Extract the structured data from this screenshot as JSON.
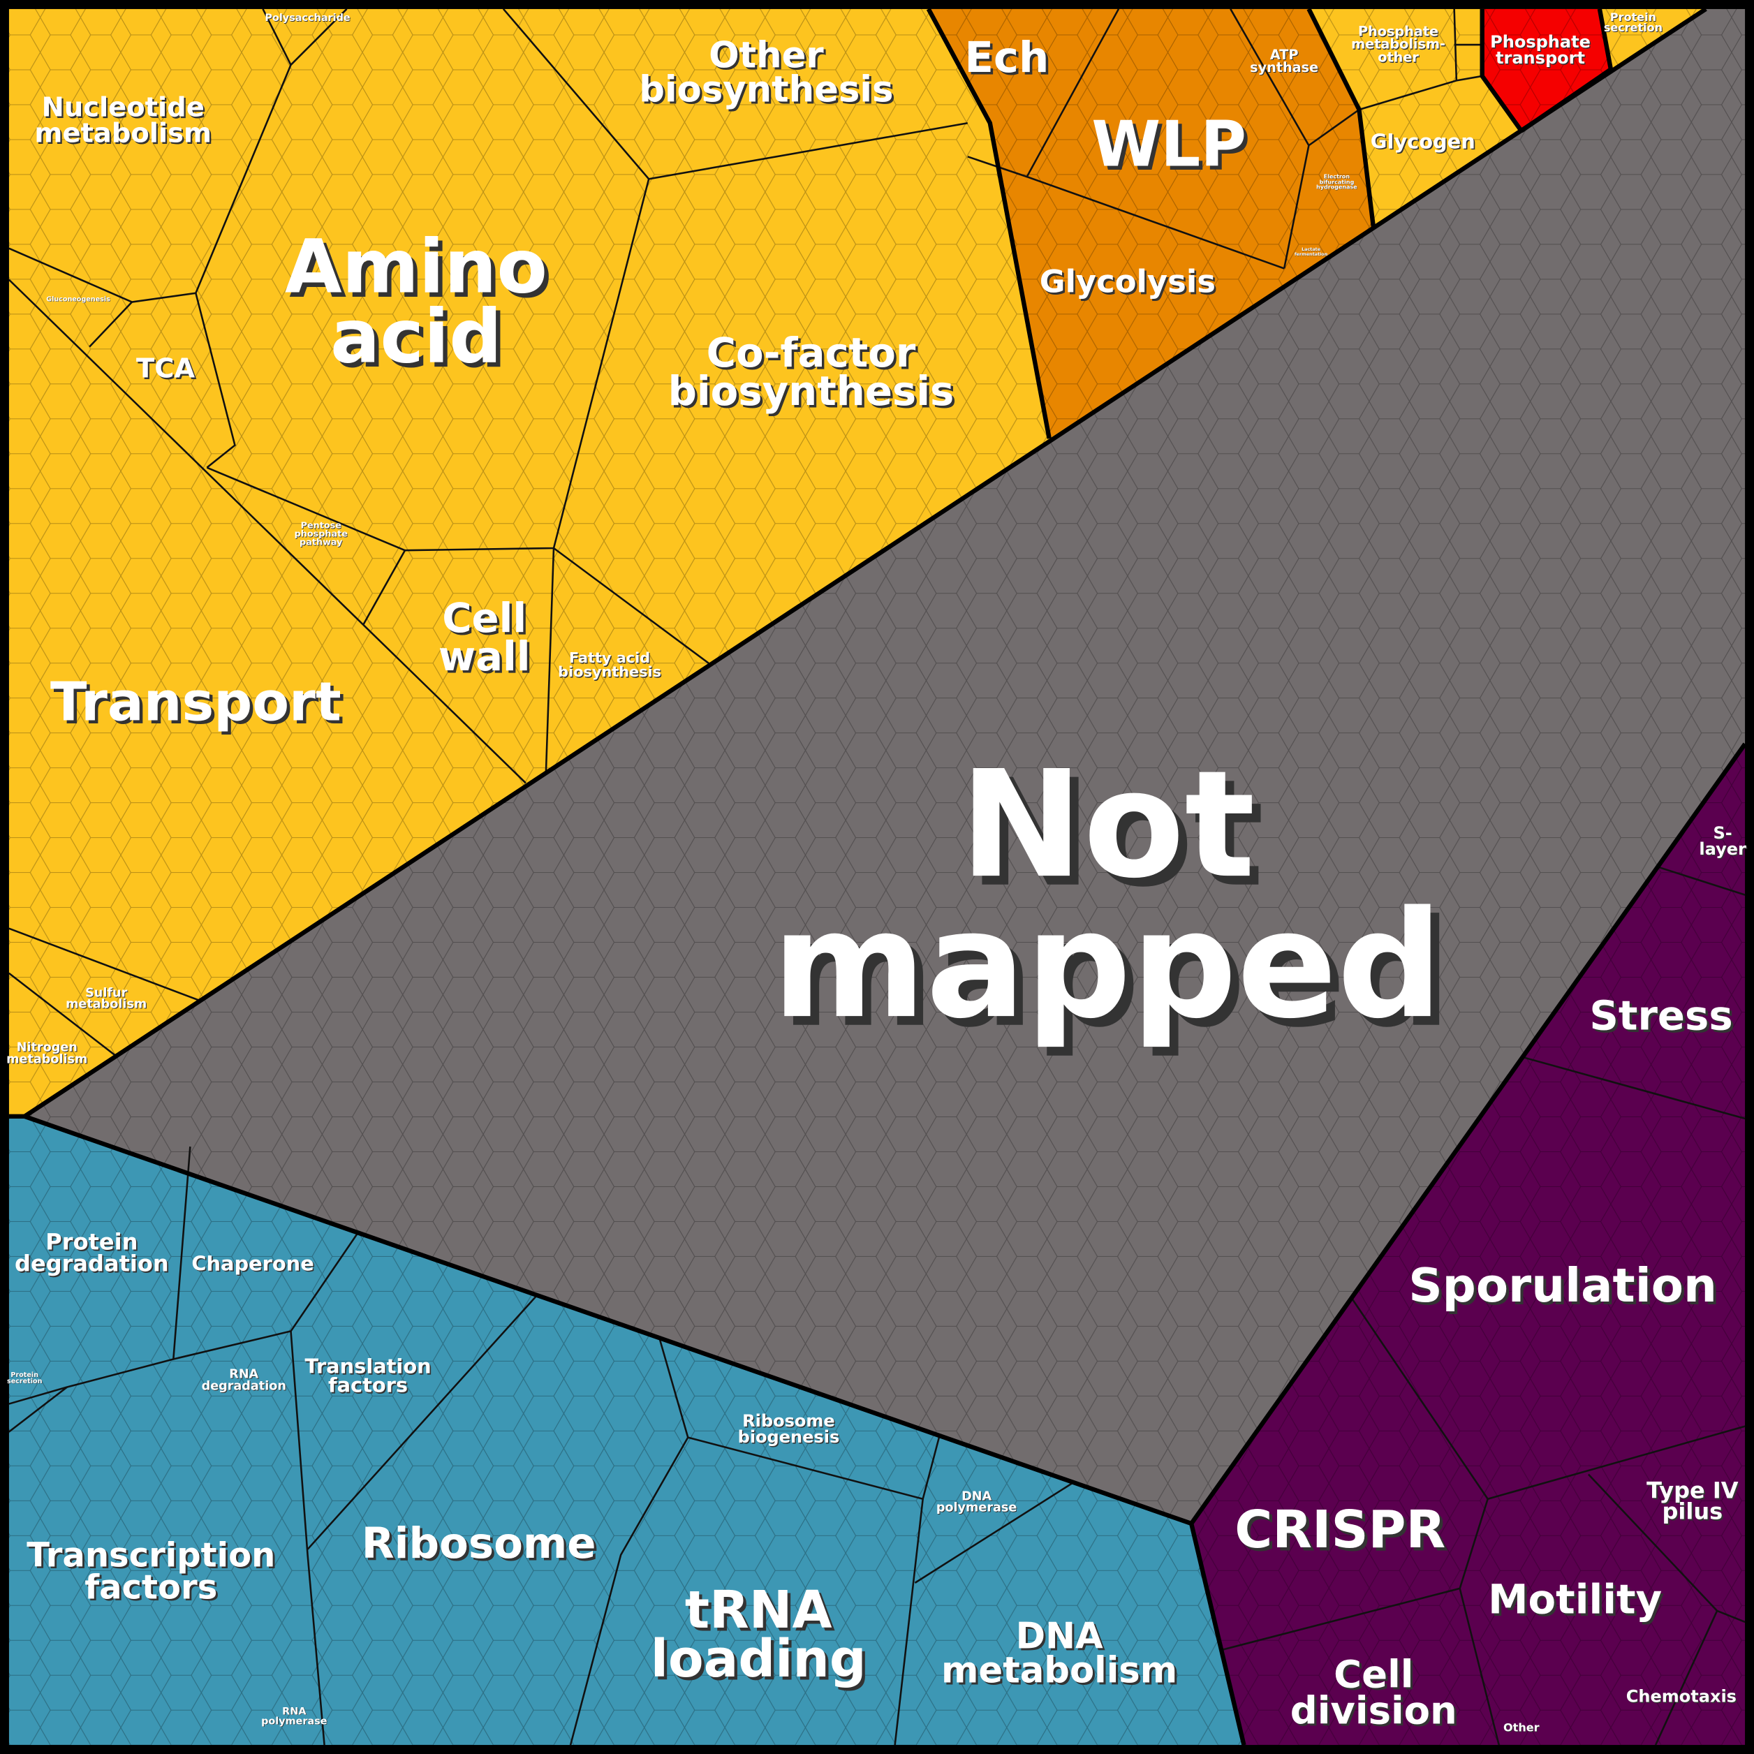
{
  "regions": [
    {
      "color": "#fdc41f",
      "labels": [
        "Nucleotide\nmetabolism",
        "Polysaccharide",
        "Other\nbiosynthesis",
        "Amino\nacid",
        "Gluconeogenesis",
        "TCA",
        "Co-factor\nbiosynthesis",
        "Pentose\nphosphate\npathway",
        "Cell\nwall",
        "Fatty acid\nbiosynthesis",
        "Transport",
        "Sulfur\nmetabolism",
        "Nitrogen\nmetabolism",
        "Phosphate\nmetabolism-\nother",
        "Protein\nsecretion",
        "Glycogen"
      ]
    },
    {
      "color": "#e88600",
      "labels": [
        "Ech",
        "WLP",
        "ATP\nsynthase",
        "Electron\nbifurcating\nhydrogenase",
        "Lactate\nfermentation",
        "Glycolysis"
      ]
    },
    {
      "color": "#f50000",
      "labels": [
        "Phosphate\ntransport"
      ]
    },
    {
      "color": "#726d6e",
      "labels": [
        "Not\nmapped"
      ]
    },
    {
      "color": "#3d97b4",
      "labels": [
        "Protein\ndegradation",
        "Chaperone",
        "Protein\nsecretion",
        "RNA\ndegradation",
        "Translation\nfactors",
        "Ribosome\nbiogenesis",
        "DNA\npolymerase",
        "Transcription\nfactors",
        "Ribosome",
        "tRNA\nloading",
        "DNA\nmetabolism",
        "RNA\npolymerase"
      ]
    },
    {
      "color": "#5b004f",
      "labels": [
        "S-\nlayer",
        "Stress",
        "Sporulation",
        "CRISPR",
        "Type IV\npilus",
        "Motility",
        "Cell\ndivision",
        "Chemotaxis",
        "Other"
      ]
    }
  ]
}
